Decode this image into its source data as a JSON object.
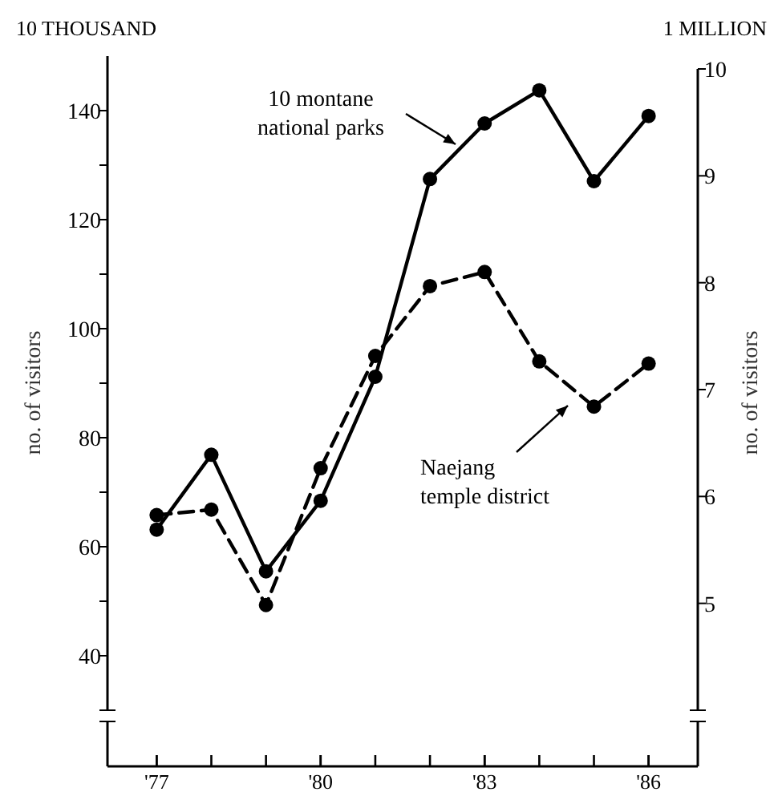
{
  "chart_data": {
    "type": "line",
    "x": [
      1977,
      1978,
      1979,
      1980,
      1981,
      1982,
      1983,
      1984,
      1985,
      1986
    ],
    "series": [
      {
        "name": "10 montane national parks",
        "color": "#000000",
        "axis": "y2",
        "line_style": "solid",
        "values": [
          5.69,
          6.39,
          5.3,
          5.96,
          7.12,
          8.97,
          9.49,
          9.8,
          8.95,
          9.56
        ]
      },
      {
        "name": "Naejang temple district",
        "color": "#000000",
        "axis": "y",
        "line_style": "dashed",
        "values": [
          65.8,
          66.8,
          49.3,
          74.4,
          95,
          107.8,
          110.4,
          94,
          85.7,
          93.6
        ]
      }
    ],
    "marker": "circle",
    "xlim": [
      1976.1,
      1986.9
    ],
    "xticks": [
      {
        "value": 1977,
        "label": "'77"
      },
      {
        "value": 1980,
        "label": "'80"
      },
      {
        "value": 1983,
        "label": "'83"
      },
      {
        "value": 1986,
        "label": "'86"
      }
    ],
    "ylim": [
      30,
      150
    ],
    "yticks": [
      40,
      {
        "value": 50,
        "label": null
      },
      60,
      {
        "value": 70,
        "label": null
      },
      80,
      {
        "value": 90,
        "label": null
      },
      100,
      {
        "value": 110,
        "label": null
      },
      120,
      {
        "value": 130,
        "label": null
      },
      140
    ],
    "y2lim": [
      4,
      10
    ],
    "y2ticks": [
      5,
      6,
      7,
      8,
      9,
      10
    ],
    "ylabel": "no. of visitors",
    "y2label": "no. of visitors",
    "annotations": [
      "10 THOUSAND",
      "1 MILLION"
    ],
    "grid": false,
    "legend": "top left"
  }
}
